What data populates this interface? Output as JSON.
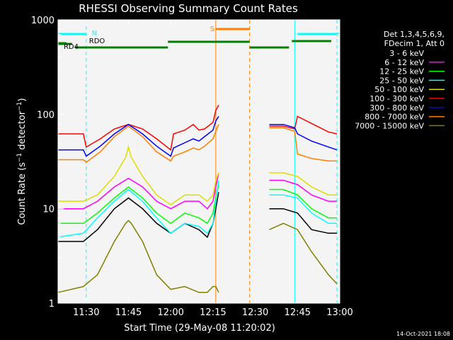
{
  "chart_data": {
    "type": "line",
    "title": "RHESSI Observing Summary Count Rates",
    "xlabel": "Start Time (29-May-08 11:20:02)",
    "ylabel": "Count Rate (s⁻¹ detector⁻¹)",
    "ylabel_parts": {
      "main": "Count Rate (s",
      "sup1": "−1",
      "mid": " detector",
      "sup2": "−1",
      "end": ")"
    },
    "scale": {
      "y": "log"
    },
    "xlim": [
      20,
      120
    ],
    "ylim": [
      1,
      1000
    ],
    "xticks": [
      {
        "value": 30,
        "label": "11:30"
      },
      {
        "value": 45,
        "label": "11:45"
      },
      {
        "value": 60,
        "label": "12:00"
      },
      {
        "value": 75,
        "label": "12:15"
      },
      {
        "value": 90,
        "label": "12:30"
      },
      {
        "value": 105,
        "label": "12:45"
      },
      {
        "value": 120,
        "label": "13:00"
      }
    ],
    "yticks": [
      {
        "value": 1,
        "label": "1"
      },
      {
        "value": 10,
        "label": "10"
      },
      {
        "value": 100,
        "label": "100"
      },
      {
        "value": 1000,
        "label": "1000"
      }
    ],
    "legend_header": [
      "Det 1,3,4,5,6,9,",
      "FDecim 1, Att 0"
    ],
    "legend_position": "right",
    "series": [
      {
        "name": "3 - 6 keV",
        "color": "#000000",
        "x": [
          20,
          29,
          34,
          40,
          45,
          50,
          55,
          60,
          65,
          70,
          73,
          75,
          76,
          77,
          80,
          90,
          95,
          100,
          105,
          110,
          116,
          119
        ],
        "y": [
          4.5,
          4.5,
          6,
          10,
          13,
          10,
          7,
          5.5,
          7,
          6,
          5,
          7,
          10,
          15,
          null,
          null,
          10,
          10,
          9,
          6,
          5.5,
          5.5
        ]
      },
      {
        "name": "6 - 12 keV",
        "color": "#ff00ff",
        "x": [
          20,
          29,
          34,
          40,
          45,
          50,
          55,
          60,
          65,
          70,
          73,
          75,
          76,
          77,
          80,
          90,
          95,
          100,
          105,
          110,
          116,
          119
        ],
        "y": [
          10,
          10,
          12,
          17,
          21,
          17,
          12,
          10,
          12,
          12,
          10,
          12,
          17,
          24,
          null,
          null,
          20,
          20,
          18,
          14,
          12,
          12
        ]
      },
      {
        "name": "12 - 25 keV",
        "color": "#00ff00",
        "x": [
          20,
          29,
          34,
          40,
          45,
          50,
          55,
          60,
          65,
          70,
          73,
          75,
          76,
          77,
          80,
          90,
          95,
          100,
          105,
          110,
          116,
          119
        ],
        "y": [
          7,
          7,
          9,
          13,
          17,
          13,
          9,
          7,
          9,
          8,
          7,
          9,
          13,
          18,
          null,
          null,
          16,
          16,
          14,
          10,
          8,
          8
        ]
      },
      {
        "name": "25 - 50 keV",
        "color": "#00ffff",
        "x": [
          20,
          29,
          34,
          40,
          45,
          50,
          55,
          60,
          65,
          70,
          73,
          75,
          76,
          77,
          80,
          90,
          95,
          100,
          105,
          110,
          116,
          119
        ],
        "y": [
          5,
          5.5,
          8,
          12,
          16,
          12,
          8,
          5.5,
          7,
          6.5,
          5.5,
          7,
          12,
          20,
          null,
          null,
          14,
          14,
          13,
          9,
          7,
          7
        ]
      },
      {
        "name": "50 - 100 keV",
        "color": "#dddd00",
        "x": [
          20,
          29,
          34,
          40,
          44,
          45,
          46,
          50,
          55,
          60,
          65,
          70,
          73,
          75,
          76,
          77,
          80,
          90,
          95,
          100,
          105,
          110,
          116,
          119
        ],
        "y": [
          12,
          12,
          14,
          22,
          35,
          45,
          35,
          22,
          14,
          11,
          14,
          14,
          12,
          14,
          20,
          24,
          null,
          null,
          24,
          24,
          22,
          17,
          14,
          14
        ]
      },
      {
        "name": "100 - 300 keV",
        "color": "#ff0000",
        "x": [
          20,
          29,
          30,
          35,
          40,
          45,
          50,
          55,
          60,
          61,
          65,
          68,
          70,
          72,
          75,
          76,
          77,
          80,
          90,
          95,
          100,
          104,
          105,
          110,
          116,
          119
        ],
        "y": [
          62,
          62,
          45,
          55,
          70,
          78,
          70,
          55,
          42,
          62,
          68,
          78,
          68,
          70,
          82,
          110,
          125,
          null,
          null,
          75,
          75,
          70,
          95,
          80,
          65,
          62
        ]
      },
      {
        "name": "300 - 800 keV",
        "color": "#0000ff",
        "x": [
          20,
          29,
          30,
          35,
          40,
          45,
          50,
          55,
          60,
          61,
          65,
          68,
          70,
          72,
          75,
          76,
          77,
          80,
          90,
          95,
          100,
          104,
          105,
          110,
          116,
          119
        ],
        "y": [
          42,
          42,
          36,
          46,
          62,
          78,
          62,
          46,
          36,
          44,
          50,
          55,
          52,
          58,
          68,
          85,
          95,
          null,
          null,
          78,
          78,
          72,
          62,
          52,
          45,
          42
        ]
      },
      {
        "name": "800 - 7000 keV",
        "color": "#ff8000",
        "x": [
          20,
          29,
          30,
          35,
          40,
          45,
          50,
          55,
          60,
          61,
          65,
          68,
          70,
          72,
          75,
          76,
          77,
          80,
          90,
          95,
          100,
          104,
          105,
          110,
          116,
          119
        ],
        "y": [
          33,
          33,
          31,
          40,
          58,
          75,
          58,
          40,
          32,
          36,
          40,
          44,
          42,
          46,
          55,
          66,
          78,
          null,
          null,
          72,
          72,
          66,
          38,
          34,
          32,
          32
        ]
      },
      {
        "name": "7000 - 15000 keV",
        "color": "#808000",
        "x": [
          20,
          29,
          34,
          40,
          44,
          45,
          46,
          50,
          55,
          60,
          65,
          70,
          73,
          75,
          76,
          77,
          80,
          90,
          95,
          100,
          105,
          110,
          116,
          119
        ],
        "y": [
          1.3,
          1.5,
          2,
          4.5,
          7,
          7.5,
          7,
          4.5,
          2,
          1.4,
          1.5,
          1.3,
          1.3,
          1.5,
          1.5,
          1.3,
          null,
          null,
          6,
          7,
          6,
          3.5,
          2,
          1.6
        ]
      }
    ],
    "annotations": {
      "n_flag": {
        "label": "N",
        "color": "#00ffff",
        "segments": [
          [
            20,
            30
          ],
          [
            105,
            120
          ]
        ]
      },
      "saa_flag": {
        "label": "S",
        "color": "#ff8000",
        "segments": [
          [
            76,
            88
          ]
        ]
      },
      "rdo_flag": {
        "label": "RDO",
        "color": "#008000",
        "segments": [
          [
            20,
            25
          ]
        ]
      },
      "rd4_flag": {
        "label": "RD4",
        "color": "#008000",
        "segments": [
          [
            20,
            23
          ],
          [
            26,
            59
          ],
          [
            59,
            88
          ],
          [
            88,
            102
          ],
          [
            103,
            117
          ]
        ]
      },
      "markers": [
        {
          "x": 20,
          "color": "#00ffff",
          "style": "solid"
        },
        {
          "x": 30,
          "color": "#00ffff",
          "style": "dashed"
        },
        {
          "x": 76,
          "color": "#ff8000",
          "style": "solid"
        },
        {
          "x": 88,
          "color": "#ff8000",
          "style": "dashed"
        },
        {
          "x": 104,
          "color": "#00ffff",
          "style": "solid"
        },
        {
          "x": 119,
          "color": "#00ffff",
          "style": "dashed"
        }
      ]
    },
    "timestamp": "14-Oct-2021 18:08",
    "colors": {
      "frame": "#ffffff",
      "text": "#ffffff",
      "background": "#000000",
      "plot_background": "#f4f4f4"
    }
  }
}
